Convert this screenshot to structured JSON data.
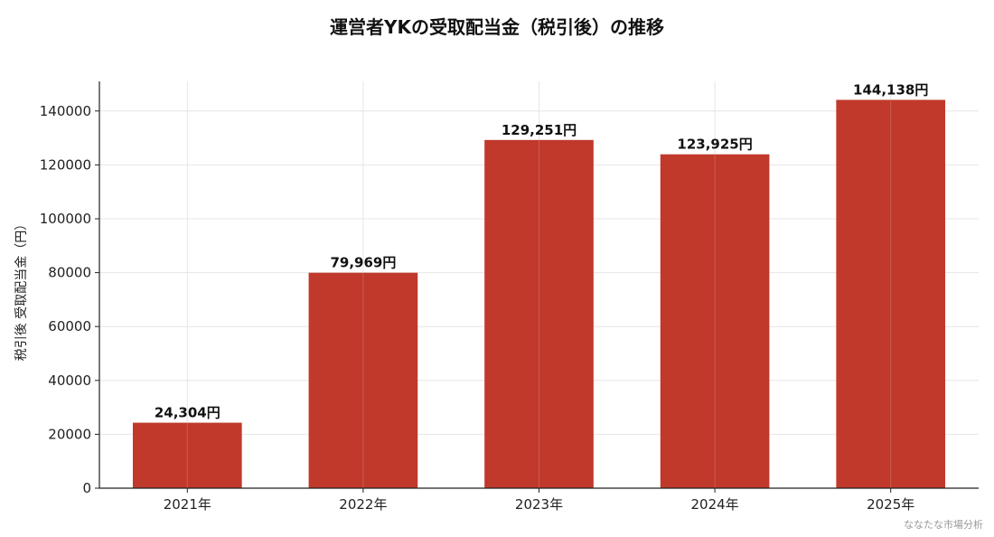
{
  "chart_data": {
    "type": "bar",
    "title": "運営者YKの受取配当金（税引後）の推移",
    "xlabel": "",
    "ylabel": "税引後 受取配当金（円）",
    "categories": [
      "2021年",
      "2022年",
      "2023年",
      "2024年",
      "2025年"
    ],
    "values": [
      24304,
      79969,
      129251,
      123925,
      144138
    ],
    "value_labels": [
      "24,304円",
      "79,969円",
      "129,251円",
      "123,925円",
      "144,138円"
    ],
    "ylim": [
      0,
      151000
    ],
    "yticks": [
      0,
      20000,
      40000,
      60000,
      80000,
      100000,
      120000,
      140000
    ],
    "grid": true,
    "bar_color": "#c0392b"
  },
  "watermark": "ななたな市場分析"
}
